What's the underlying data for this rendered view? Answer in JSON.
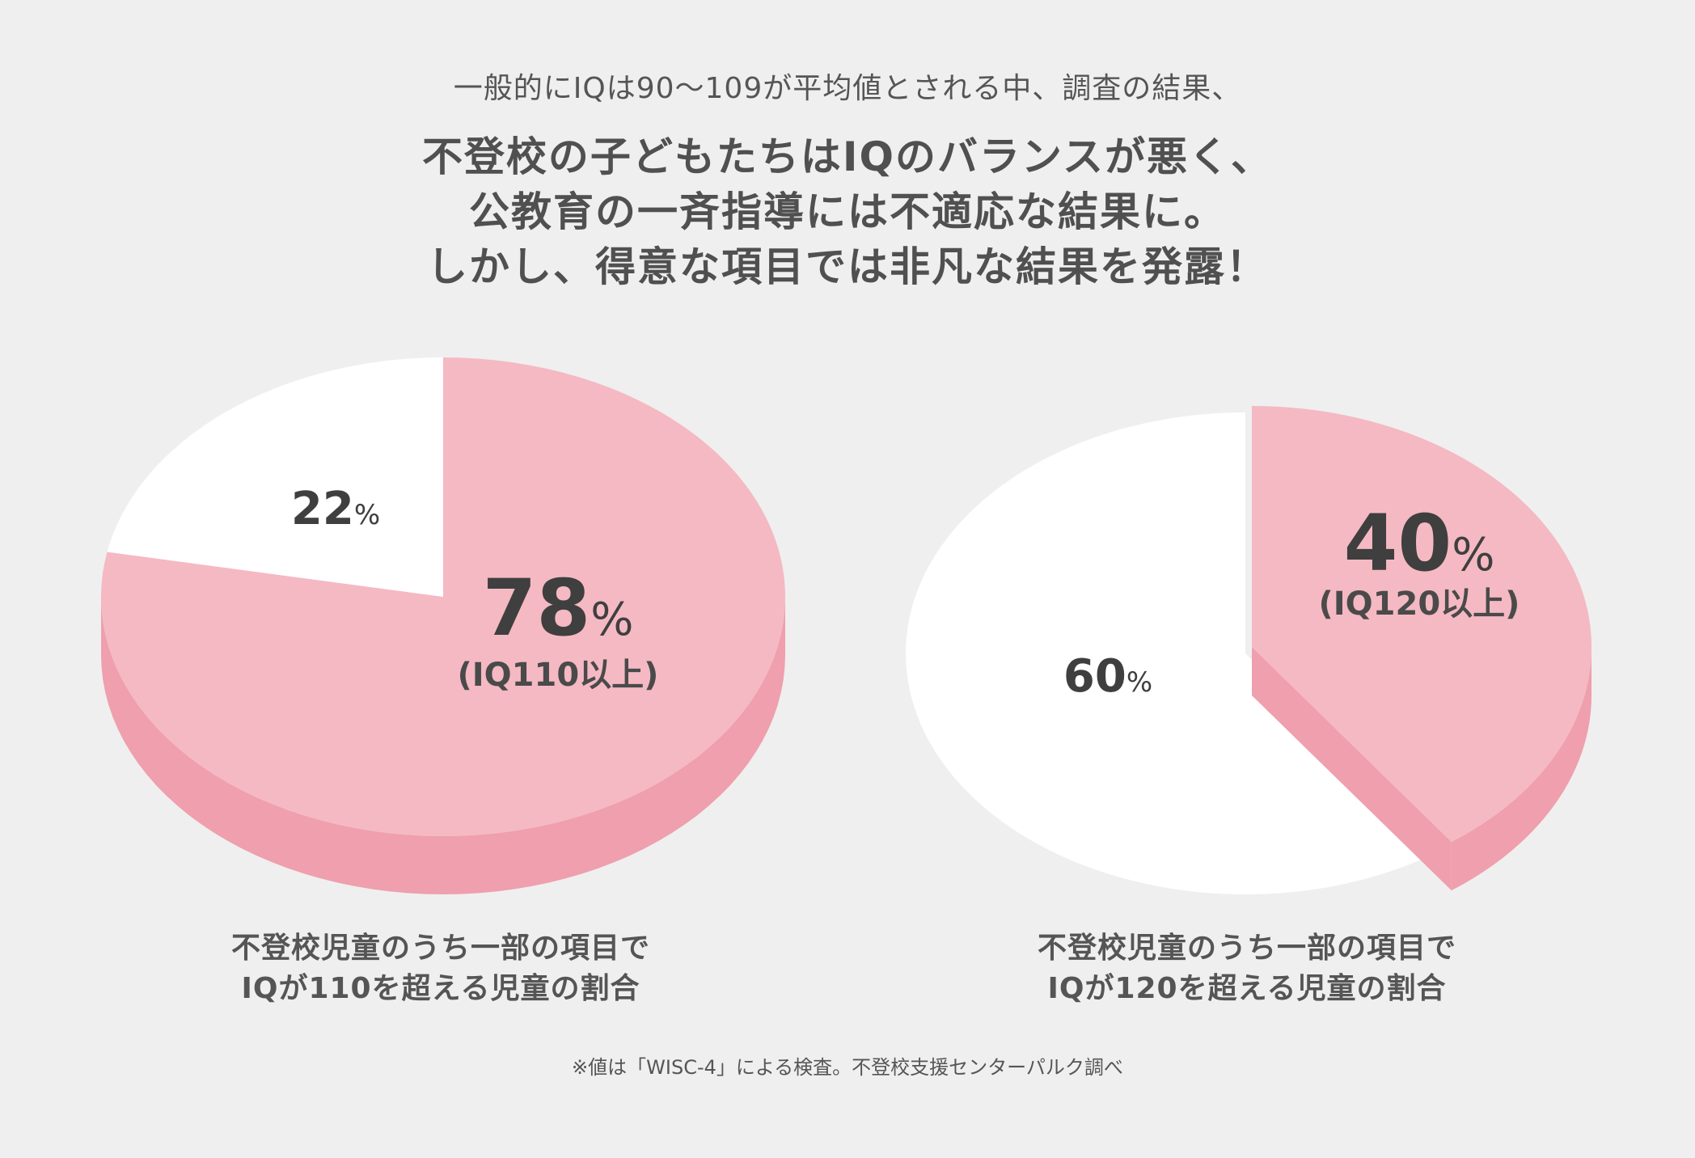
{
  "subtitle": "一般的にIQは90〜109が平均値とされる中、調査の結果、",
  "headline": {
    "line1": "不登校の子どもたちはIQのバランスが悪く、",
    "line2": "公教育の一斉指導には不適応な結果に。",
    "line3": "しかし、得意な項目では非凡な結果を発露！"
  },
  "colors": {
    "pink_top": "#f5b9c3",
    "pink_side": "#ef9fad",
    "white_slice": "#ffffff",
    "background": "#efefef",
    "text": "#4a4a4a"
  },
  "chart_data": [
    {
      "type": "pie",
      "caption_line1": "不登校児童のうち一部の項目で",
      "caption_line2": "IQが110を超える児童の割合",
      "slices": [
        {
          "value": 78,
          "label": "78",
          "unit": "%",
          "sublabel": "(IQ110以上)",
          "color": "#f5b9c3",
          "exploded": false
        },
        {
          "value": 22,
          "label": "22",
          "unit": "%",
          "sublabel": "",
          "color": "#ffffff",
          "exploded": false
        }
      ]
    },
    {
      "type": "pie",
      "caption_line1": "不登校児童のうち一部の項目で",
      "caption_line2": "IQが120を超える児童の割合",
      "slices": [
        {
          "value": 40,
          "label": "40",
          "unit": "%",
          "sublabel": "(IQ120以上)",
          "color": "#f5b9c3",
          "exploded": true
        },
        {
          "value": 60,
          "label": "60",
          "unit": "%",
          "sublabel": "",
          "color": "#ffffff",
          "exploded": false
        }
      ]
    }
  ],
  "footnote": "※値は「WISC-4」による検査。不登校支援センターパルク調べ"
}
